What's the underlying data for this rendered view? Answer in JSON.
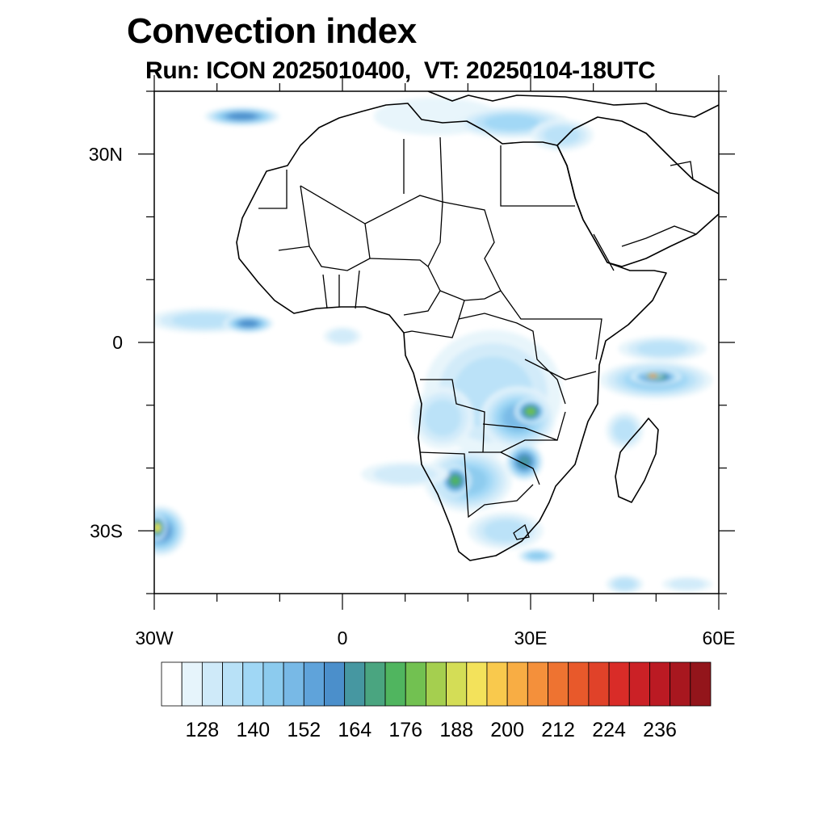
{
  "title": "Convection index",
  "subtitle": "Run: ICON 2025010400,  VT: 20250104-18UTC",
  "map": {
    "lon_range": [
      -30,
      60
    ],
    "lat_range": [
      -40,
      40
    ],
    "x_ticks": [
      {
        "value": -30,
        "label": "30W"
      },
      {
        "value": 0,
        "label": "0"
      },
      {
        "value": 30,
        "label": "30E"
      },
      {
        "value": 60,
        "label": "60E"
      }
    ],
    "y_ticks": [
      {
        "value": 30,
        "label": "30N"
      },
      {
        "value": 0,
        "label": "0"
      },
      {
        "value": -30,
        "label": "30S"
      }
    ]
  },
  "colorbar": {
    "colors": [
      "#ffffff",
      "#e6f4fb",
      "#cfeaf9",
      "#b8e1f7",
      "#a0d7f5",
      "#8ccbee",
      "#78b9e6",
      "#5fa3da",
      "#4b8fcb",
      "#4697a1",
      "#4aa580",
      "#50b55f",
      "#72c151",
      "#a5cf4f",
      "#d4dd56",
      "#f3e25b",
      "#f9c94d",
      "#f8ad44",
      "#f4903b",
      "#ee7331",
      "#e8592b",
      "#e04229",
      "#d92c28",
      "#cb2126",
      "#bb1a23",
      "#a8171f",
      "#93151b"
    ],
    "labels": [
      "128",
      "140",
      "152",
      "164",
      "176",
      "188",
      "200",
      "212",
      "224",
      "236"
    ]
  },
  "fields": [
    {
      "name": "north-africa-band",
      "lon": 15,
      "lat": 36,
      "rx": 10,
      "ry": 3,
      "level": 1
    },
    {
      "name": "mediterranean-east",
      "lon": 27,
      "lat": 35,
      "rx": 9,
      "ry": 2.5,
      "level": 4
    },
    {
      "name": "red-sea-mid",
      "lon": 35,
      "lat": 33,
      "rx": 5,
      "ry": 2.5,
      "level": 3
    },
    {
      "name": "atlantic-north-streak",
      "lon": -16,
      "lat": 36,
      "rx": 6,
      "ry": 1.5,
      "level": 8
    },
    {
      "name": "gulf-guinea-west",
      "lon": -22,
      "lat": 3.5,
      "rx": 9,
      "ry": 2,
      "level": 3
    },
    {
      "name": "gulf-guinea-core",
      "lon": -15,
      "lat": 3,
      "rx": 4,
      "ry": 1.5,
      "level": 8
    },
    {
      "name": "gulf-guinea-east",
      "lon": 0,
      "lat": 1,
      "rx": 3,
      "ry": 1.5,
      "level": 2
    },
    {
      "name": "congo-outer",
      "lon": 24,
      "lat": -8,
      "rx": 11,
      "ry": 10,
      "level": 3
    },
    {
      "name": "congo-core",
      "lon": 28,
      "lat": -12,
      "rx": 6,
      "ry": 5,
      "level": 6
    },
    {
      "name": "zambia-hot",
      "lon": 30,
      "lat": -11,
      "rx": 2.5,
      "ry": 2,
      "level": 12
    },
    {
      "name": "angola-coast",
      "lon": 16,
      "lat": -12,
      "rx": 5,
      "ry": 5,
      "level": 3
    },
    {
      "name": "namibia-botswana",
      "lon": 20,
      "lat": -22,
      "rx": 7,
      "ry": 5,
      "level": 5
    },
    {
      "name": "namibia-hot",
      "lon": 18,
      "lat": -22,
      "rx": 2.5,
      "ry": 2.5,
      "level": 11
    },
    {
      "name": "zimbabwe",
      "lon": 29,
      "lat": -19,
      "rx": 3,
      "ry": 3,
      "level": 9
    },
    {
      "name": "south-atlantic-band",
      "lon": 10,
      "lat": -21,
      "rx": 7,
      "ry": 2,
      "level": 2
    },
    {
      "name": "south-africa-south",
      "lon": 26,
      "lat": -30,
      "rx": 6,
      "ry": 3,
      "level": 3
    },
    {
      "name": "natal-coast",
      "lon": 31,
      "lat": -34,
      "rx": 3,
      "ry": 1.2,
      "level": 5
    },
    {
      "name": "indian-ocean-band",
      "lon": 50,
      "lat": -6,
      "rx": 9,
      "ry": 3,
      "level": 5
    },
    {
      "name": "indian-ocean-core",
      "lon": 50,
      "lat": -5.5,
      "rx": 4,
      "ry": 1.3,
      "level": 11
    },
    {
      "name": "indian-ocean-hot",
      "lon": 49.5,
      "lat": -5.3,
      "rx": 1.5,
      "ry": 0.6,
      "level": 20
    },
    {
      "name": "indian-ocean-north",
      "lon": 51,
      "lat": -1,
      "rx": 7,
      "ry": 2,
      "level": 3
    },
    {
      "name": "madagascar-north",
      "lon": 45,
      "lat": -14,
      "rx": 3,
      "ry": 3,
      "level": 3
    },
    {
      "name": "sw-corner-storm",
      "lon": -29,
      "lat": -30,
      "rx": 4,
      "ry": 4,
      "level": 8
    },
    {
      "name": "sw-corner-hot",
      "lon": -29.5,
      "lat": -29.5,
      "rx": 1.5,
      "ry": 2,
      "level": 15
    },
    {
      "name": "south-indian-south",
      "lon": 45,
      "lat": -38.5,
      "rx": 3,
      "ry": 1.5,
      "level": 3
    },
    {
      "name": "south-indian-east",
      "lon": 55,
      "lat": -38.5,
      "rx": 4,
      "ry": 1.2,
      "level": 2
    }
  ]
}
